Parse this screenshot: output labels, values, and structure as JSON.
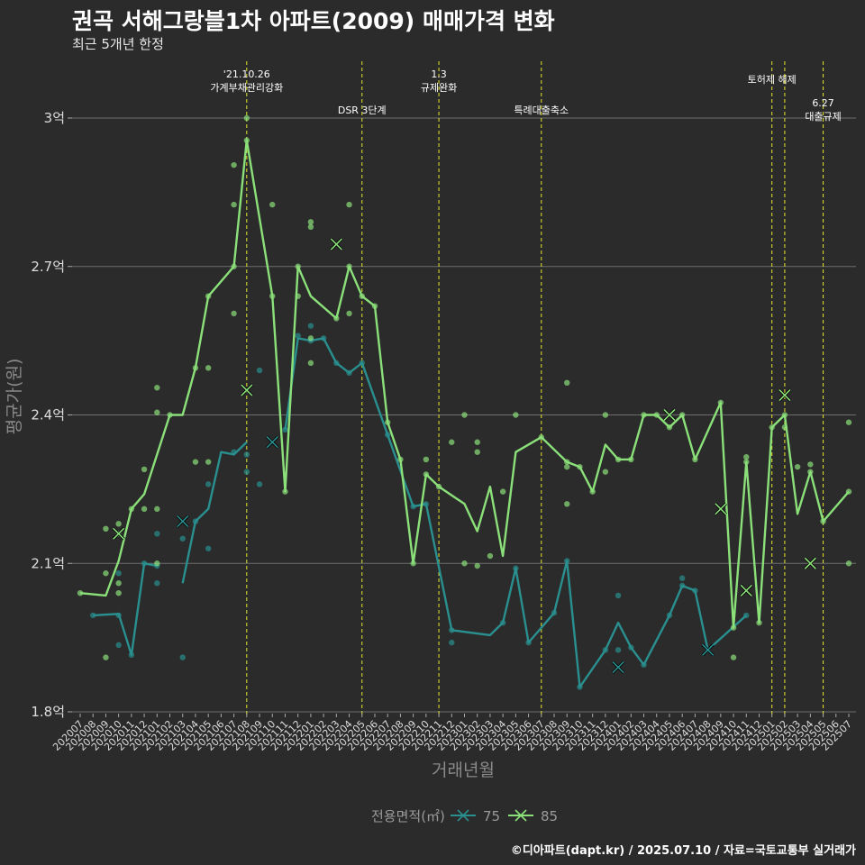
{
  "title": "권곡 서해그랑블1차 아파트(2009) 매매가격 변화",
  "subtitle": "최근 5개년 한정",
  "caption": "©디아파트(dapt.kr) / 2025.07.10 / 자료=국토교통부 실거래가",
  "colors": {
    "s75": "#2a8f8f",
    "s85": "#8be07a",
    "event": "#e6e62e",
    "grid": "#6e6e6e"
  },
  "chart_data": {
    "type": "line",
    "xlabel": "거래년월",
    "ylabel": "평균가(원)",
    "ylim": [
      1.8,
      3.12
    ],
    "y_ticks": [
      {
        "v": 1.8,
        "label": "1.8억"
      },
      {
        "v": 2.1,
        "label": "2.1억"
      },
      {
        "v": 2.4,
        "label": "2.4억"
      },
      {
        "v": 2.7,
        "label": "2.7억"
      },
      {
        "v": 3.0,
        "label": "3억"
      }
    ],
    "categories": [
      "202007",
      "202008",
      "202009",
      "202010",
      "202011",
      "202012",
      "202101",
      "202102",
      "202103",
      "202104",
      "202105",
      "202106",
      "202107",
      "202108",
      "202109",
      "202110",
      "202111",
      "202112",
      "202201",
      "202202",
      "202203",
      "202204",
      "202205",
      "202206",
      "202207",
      "202208",
      "202209",
      "202210",
      "202211",
      "202212",
      "202301",
      "202302",
      "202303",
      "202304",
      "202305",
      "202306",
      "202307",
      "202308",
      "202309",
      "202310",
      "202311",
      "202312",
      "202401",
      "202402",
      "202403",
      "202404",
      "202405",
      "202406",
      "202407",
      "202408",
      "202409",
      "202410",
      "202411",
      "202412",
      "202501",
      "202502",
      "202503",
      "202504",
      "202505",
      "202506",
      "202507"
    ],
    "legend_title": "전용면적(㎡)",
    "series": [
      {
        "name": "75",
        "color": "#2a8f8f",
        "line": [
          [
            1,
            1.995
          ],
          [
            3,
            1.998
          ],
          [
            4,
            1.915
          ],
          [
            5,
            2.1
          ],
          [
            6,
            2.095
          ],
          null,
          [
            8,
            2.06
          ],
          [
            9,
            2.185
          ],
          [
            10,
            2.21
          ],
          [
            11,
            2.325
          ],
          [
            12,
            2.32
          ],
          [
            13,
            2.345
          ],
          null,
          [
            16,
            2.37
          ],
          [
            17,
            2.555
          ],
          [
            18,
            2.55
          ],
          [
            19,
            2.555
          ],
          [
            20,
            2.505
          ],
          [
            21,
            2.485
          ],
          [
            22,
            2.505
          ],
          [
            24,
            2.36
          ],
          [
            26,
            2.215
          ],
          [
            27,
            2.22
          ],
          [
            29,
            1.965
          ],
          [
            32,
            1.955
          ],
          [
            33,
            1.98
          ],
          [
            34,
            2.09
          ],
          [
            35,
            1.94
          ],
          [
            37,
            2.0
          ],
          [
            38,
            2.105
          ],
          [
            39,
            1.85
          ],
          [
            41,
            1.925
          ],
          [
            42,
            1.98
          ],
          [
            43,
            1.93
          ],
          [
            44,
            1.895
          ],
          [
            46,
            1.995
          ],
          [
            47,
            2.055
          ],
          [
            48,
            2.045
          ],
          [
            49,
            1.925
          ],
          [
            52,
            1.995
          ]
        ],
        "points": [
          [
            1,
            1.995
          ],
          [
            3,
            1.995
          ],
          [
            3,
            2.08
          ],
          [
            3,
            1.935
          ],
          [
            4,
            1.915
          ],
          [
            5,
            2.1
          ],
          [
            6,
            2.095
          ],
          [
            6,
            2.16
          ],
          [
            6,
            2.06
          ],
          [
            8,
            2.15
          ],
          [
            8,
            1.91
          ],
          [
            9,
            2.185
          ],
          [
            10,
            2.26
          ],
          [
            10,
            2.13
          ],
          [
            12,
            2.325
          ],
          [
            13,
            2.32
          ],
          [
            13,
            2.285
          ],
          [
            14,
            2.26
          ],
          [
            14,
            2.49
          ],
          [
            16,
            2.37
          ],
          [
            17,
            2.56
          ],
          [
            18,
            2.58
          ],
          [
            18,
            2.55
          ],
          [
            19,
            2.555
          ],
          [
            20,
            2.505
          ],
          [
            21,
            2.485
          ],
          [
            22,
            2.505
          ],
          [
            24,
            2.36
          ],
          [
            26,
            2.215
          ],
          [
            27,
            2.22
          ],
          [
            29,
            1.965
          ],
          [
            29,
            1.94
          ],
          [
            33,
            1.98
          ],
          [
            34,
            2.09
          ],
          [
            35,
            1.94
          ],
          [
            37,
            2.0
          ],
          [
            38,
            2.105
          ],
          [
            39,
            1.85
          ],
          [
            41,
            1.925
          ],
          [
            42,
            2.035
          ],
          [
            42,
            1.925
          ],
          [
            43,
            1.93
          ],
          [
            44,
            1.895
          ],
          [
            46,
            1.995
          ],
          [
            47,
            2.07
          ],
          [
            47,
            2.055
          ],
          [
            48,
            2.045
          ],
          [
            49,
            1.925
          ],
          [
            52,
            1.995
          ]
        ],
        "mean_marks": [
          [
            8,
            2.185
          ],
          [
            15,
            2.345
          ],
          [
            42,
            1.89
          ],
          [
            49,
            1.925
          ]
        ]
      },
      {
        "name": "85",
        "color": "#8be07a",
        "line": [
          [
            0,
            2.04
          ],
          [
            2,
            2.035
          ],
          [
            3,
            2.105
          ],
          [
            4,
            2.21
          ],
          [
            5,
            2.24
          ],
          [
            7,
            2.4
          ],
          [
            8,
            2.4
          ],
          [
            9,
            2.495
          ],
          [
            10,
            2.64
          ],
          [
            12,
            2.7
          ],
          [
            13,
            2.955
          ],
          [
            15,
            2.64
          ],
          [
            16,
            2.245
          ],
          [
            17,
            2.7
          ],
          [
            18,
            2.64
          ],
          [
            20,
            2.595
          ],
          [
            21,
            2.7
          ],
          [
            22,
            2.64
          ],
          [
            23,
            2.62
          ],
          [
            24,
            2.385
          ],
          [
            25,
            2.31
          ],
          [
            26,
            2.1
          ],
          [
            27,
            2.28
          ],
          [
            28,
            2.255
          ],
          [
            30,
            2.22
          ],
          [
            31,
            2.165
          ],
          [
            32,
            2.255
          ],
          [
            33,
            2.115
          ],
          [
            34,
            2.325
          ],
          [
            36,
            2.355
          ],
          [
            38,
            2.305
          ],
          [
            39,
            2.295
          ],
          [
            40,
            2.245
          ],
          [
            41,
            2.34
          ],
          [
            42,
            2.31
          ],
          [
            43,
            2.31
          ],
          [
            44,
            2.4
          ],
          [
            45,
            2.4
          ],
          [
            46,
            2.375
          ],
          [
            47,
            2.4
          ],
          [
            48,
            2.31
          ],
          [
            50,
            2.425
          ],
          [
            51,
            1.97
          ],
          [
            52,
            2.305
          ],
          [
            53,
            1.98
          ],
          [
            54,
            2.375
          ],
          [
            55,
            2.4
          ],
          [
            56,
            2.2
          ],
          [
            57,
            2.285
          ],
          [
            58,
            2.185
          ],
          [
            60,
            2.245
          ]
        ],
        "points": [
          [
            0,
            2.04
          ],
          [
            2,
            2.17
          ],
          [
            2,
            2.08
          ],
          [
            2,
            1.91
          ],
          [
            3,
            2.18
          ],
          [
            3,
            2.16
          ],
          [
            3,
            2.06
          ],
          [
            3,
            2.04
          ],
          [
            4,
            2.21
          ],
          [
            5,
            2.29
          ],
          [
            5,
            2.21
          ],
          [
            6,
            2.455
          ],
          [
            6,
            2.405
          ],
          [
            6,
            2.21
          ],
          [
            6,
            2.1
          ],
          [
            7,
            2.4
          ],
          [
            9,
            2.495
          ],
          [
            9,
            2.305
          ],
          [
            10,
            2.64
          ],
          [
            10,
            2.495
          ],
          [
            10,
            2.305
          ],
          [
            12,
            2.7
          ],
          [
            12,
            2.605
          ],
          [
            12,
            2.905
          ],
          [
            12,
            2.825
          ],
          [
            13,
            3.0
          ],
          [
            13,
            2.955
          ],
          [
            15,
            2.825
          ],
          [
            15,
            2.64
          ],
          [
            16,
            2.245
          ],
          [
            17,
            2.7
          ],
          [
            17,
            2.64
          ],
          [
            18,
            2.79
          ],
          [
            18,
            2.78
          ],
          [
            18,
            2.555
          ],
          [
            18,
            2.505
          ],
          [
            20,
            2.595
          ],
          [
            21,
            2.825
          ],
          [
            21,
            2.7
          ],
          [
            21,
            2.605
          ],
          [
            22,
            2.64
          ],
          [
            23,
            2.62
          ],
          [
            24,
            2.385
          ],
          [
            25,
            2.31
          ],
          [
            26,
            2.1
          ],
          [
            27,
            2.31
          ],
          [
            27,
            2.28
          ],
          [
            28,
            2.255
          ],
          [
            29,
            2.345
          ],
          [
            30,
            2.4
          ],
          [
            30,
            2.1
          ],
          [
            31,
            2.345
          ],
          [
            31,
            2.325
          ],
          [
            31,
            2.095
          ],
          [
            32,
            2.115
          ],
          [
            33,
            2.245
          ],
          [
            34,
            2.4
          ],
          [
            36,
            2.355
          ],
          [
            38,
            2.465
          ],
          [
            38,
            2.305
          ],
          [
            38,
            2.295
          ],
          [
            38,
            2.22
          ],
          [
            39,
            2.295
          ],
          [
            40,
            2.245
          ],
          [
            41,
            2.4
          ],
          [
            41,
            2.285
          ],
          [
            42,
            2.31
          ],
          [
            43,
            2.31
          ],
          [
            44,
            2.4
          ],
          [
            45,
            2.4
          ],
          [
            46,
            2.375
          ],
          [
            47,
            2.4
          ],
          [
            48,
            2.31
          ],
          [
            50,
            2.425
          ],
          [
            51,
            1.97
          ],
          [
            51,
            1.91
          ],
          [
            52,
            2.315
          ],
          [
            52,
            2.305
          ],
          [
            53,
            1.98
          ],
          [
            54,
            2.375
          ],
          [
            55,
            2.375
          ],
          [
            55,
            2.4
          ],
          [
            56,
            2.295
          ],
          [
            57,
            2.3
          ],
          [
            57,
            2.285
          ],
          [
            58,
            2.185
          ],
          [
            60,
            2.385
          ],
          [
            60,
            2.245
          ],
          [
            60,
            2.1
          ]
        ],
        "mean_marks": [
          [
            3,
            2.16
          ],
          [
            13,
            2.45
          ],
          [
            20,
            2.745
          ],
          [
            46,
            2.4
          ],
          [
            50,
            2.21
          ],
          [
            52,
            2.045
          ],
          [
            55,
            2.44
          ],
          [
            57,
            2.1
          ]
        ]
      }
    ],
    "events": [
      {
        "x": 13,
        "labels": [
          "'21.10.26",
          "가계부채관리강화"
        ],
        "label_top": 86
      },
      {
        "x": 22,
        "labels": [
          "DSR 3단계"
        ],
        "label_top": 126
      },
      {
        "x": 28,
        "labels": [
          "1.3",
          "규제완화"
        ],
        "label_top": 86
      },
      {
        "x": 36,
        "labels": [
          "특례대출축소"
        ],
        "label_top": 126
      },
      {
        "x": 54,
        "labels": [
          "토허제 해제"
        ],
        "label_top": 92
      },
      {
        "x": 55,
        "labels": [],
        "label_top": 0
      },
      {
        "x": 58,
        "labels": [
          "6.27",
          "대출규제"
        ],
        "label_top": 118
      }
    ]
  }
}
